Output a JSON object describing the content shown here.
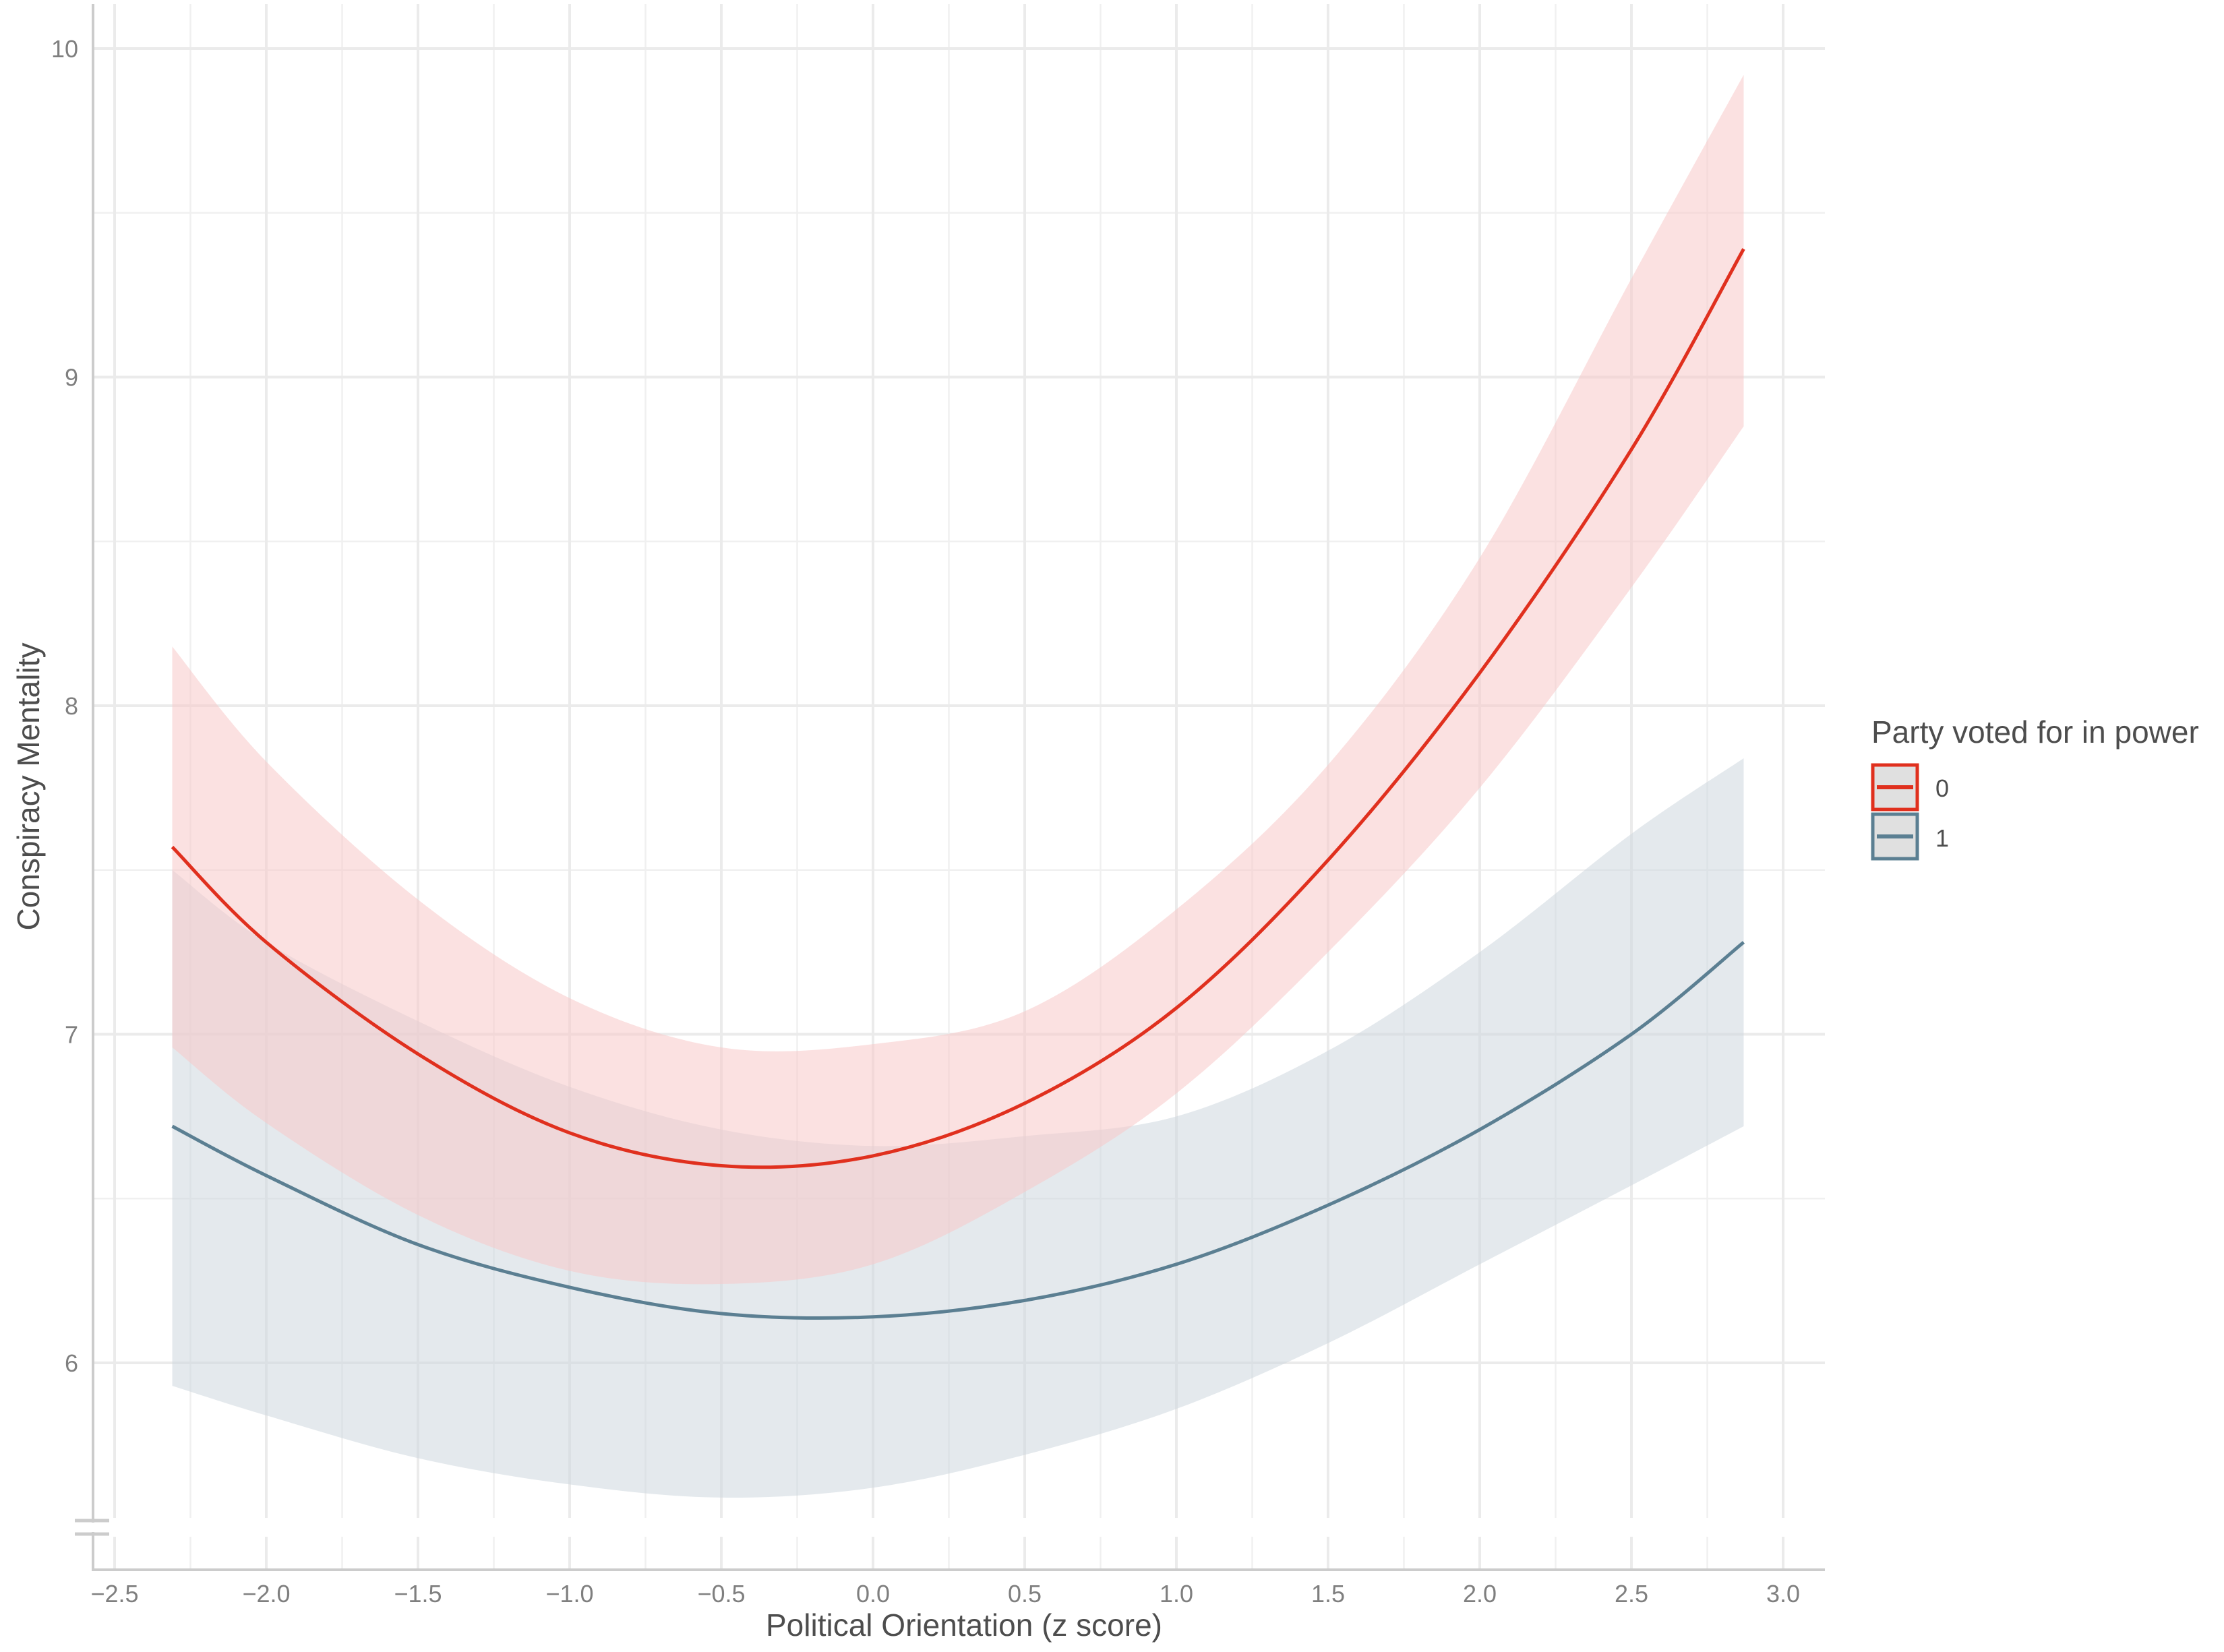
{
  "chart_data": {
    "type": "line",
    "subtype": "line-with-confidence-bands",
    "title": "",
    "xlabel": "Political Orientation (z score)",
    "ylabel": "Conspiracy Mentality",
    "xlim": [
      -2.5,
      3.0
    ],
    "ylim": [
      5.5,
      10
    ],
    "grid": true,
    "legend_position": "right",
    "x_ticks": [
      -2.5,
      -2.0,
      -1.5,
      -1.0,
      -0.5,
      0.0,
      0.5,
      1.0,
      1.5,
      2.0,
      2.5,
      3.0
    ],
    "x_tick_labels": [
      "−2.5",
      "−2.0",
      "−1.5",
      "−1.0",
      "−0.5",
      "0.0",
      "0.5",
      "1.0",
      "1.5",
      "2.0",
      "2.5",
      "3.0"
    ],
    "y_ticks": [
      6,
      7,
      8,
      9,
      10
    ],
    "y_tick_labels": [
      "6",
      "7",
      "8",
      "9",
      "10"
    ],
    "axis_break_y": true,
    "x": [
      -2.31,
      -2.0,
      -1.5,
      -1.0,
      -0.5,
      0.0,
      0.5,
      1.0,
      1.5,
      2.0,
      2.5,
      2.87
    ],
    "series": [
      {
        "name": "0",
        "color": "#e0301e",
        "band_color": "#f8c9c9",
        "values": [
          7.57,
          7.28,
          6.94,
          6.7,
          6.6,
          6.63,
          6.79,
          7.08,
          7.53,
          8.1,
          8.78,
          9.39
        ],
        "upper": [
          8.18,
          7.83,
          7.41,
          7.11,
          6.96,
          6.97,
          7.07,
          7.38,
          7.82,
          8.45,
          9.3,
          9.92
        ],
        "lower": [
          6.96,
          6.73,
          6.45,
          6.28,
          6.24,
          6.3,
          6.52,
          6.82,
          7.25,
          7.75,
          8.36,
          8.85
        ]
      },
      {
        "name": "1",
        "color": "#5b7f92",
        "band_color": "#cdd7df",
        "values": [
          6.72,
          6.57,
          6.36,
          6.23,
          6.15,
          6.14,
          6.19,
          6.3,
          6.48,
          6.71,
          7.0,
          7.28
        ],
        "upper": [
          7.5,
          7.28,
          7.04,
          6.84,
          6.71,
          6.66,
          6.69,
          6.75,
          6.95,
          7.25,
          7.61,
          7.84
        ],
        "lower": [
          5.93,
          5.84,
          5.71,
          5.63,
          5.59,
          5.62,
          5.72,
          5.86,
          6.06,
          6.3,
          6.54,
          6.72
        ]
      }
    ],
    "legend": {
      "title": "Party voted for in power",
      "entries": [
        {
          "label": "0",
          "color": "#e0301e"
        },
        {
          "label": "1",
          "color": "#5b7f92"
        }
      ]
    }
  }
}
